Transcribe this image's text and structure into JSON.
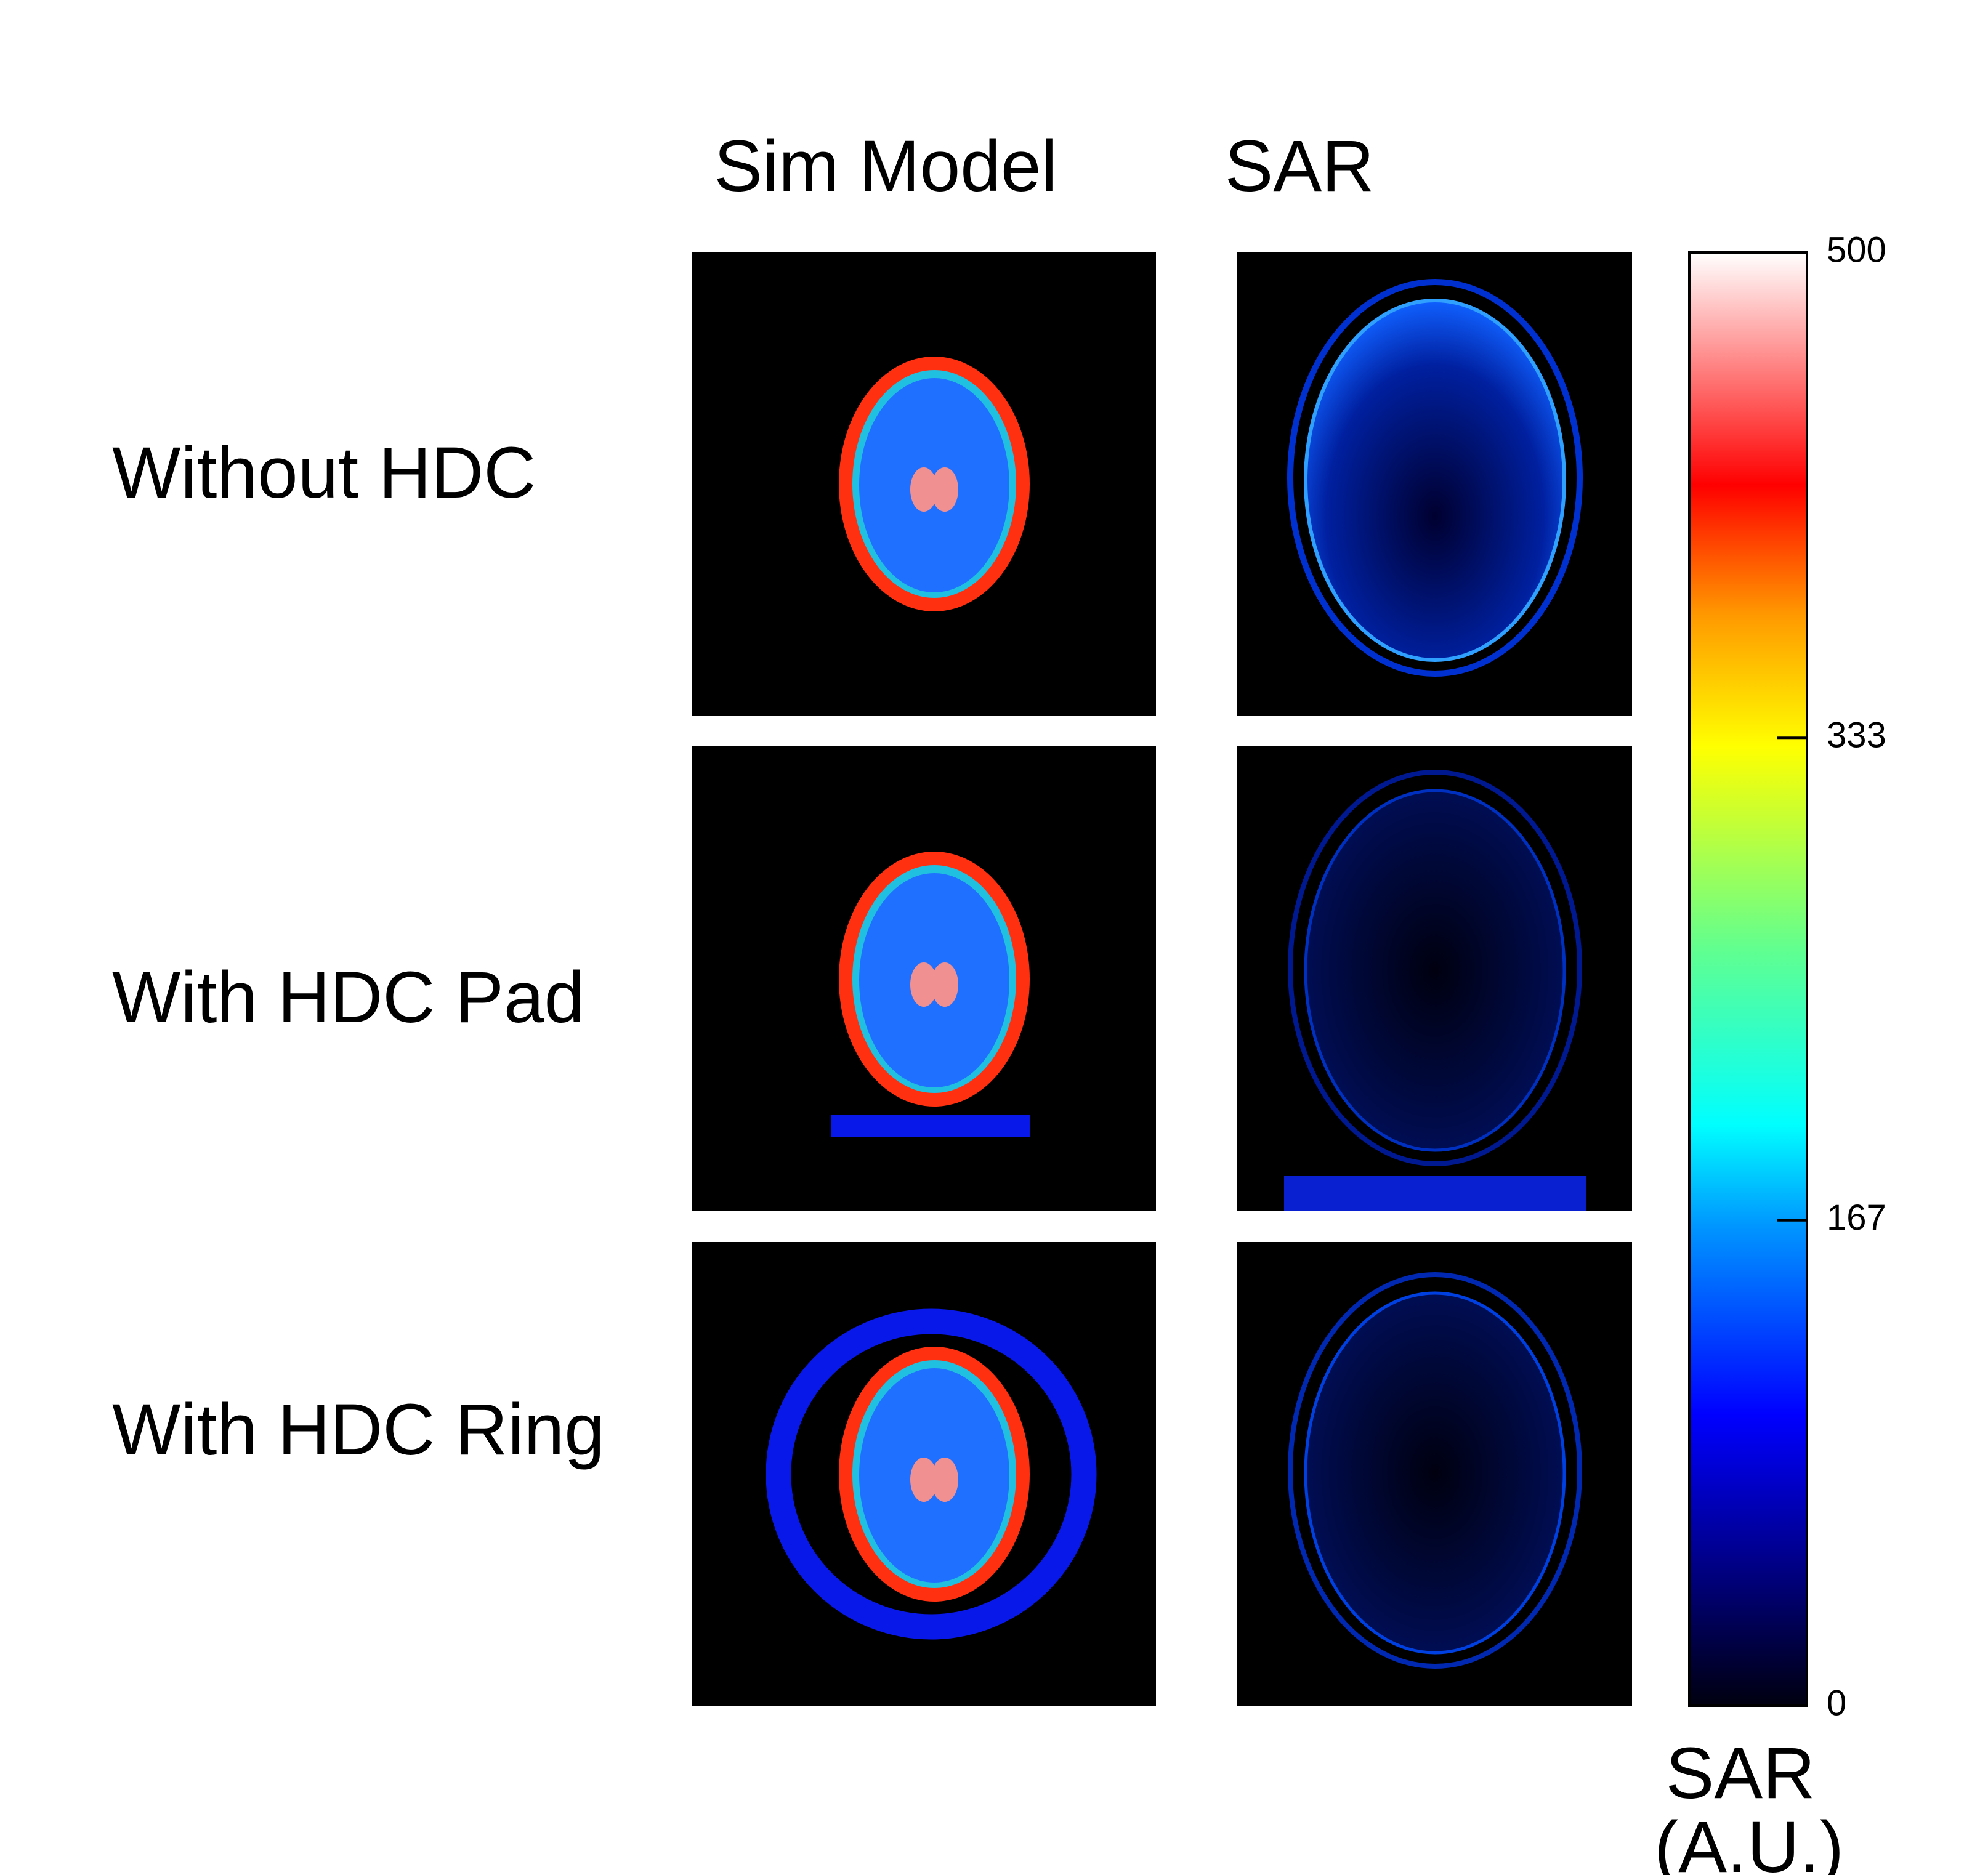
{
  "header": {
    "columns": [
      "Sim Model",
      "SAR"
    ]
  },
  "rows": [
    "Without HDC",
    "With HDC Pad",
    "With HDC Ring"
  ],
  "colorbar": {
    "lim": [
      0,
      500
    ],
    "ticks": [
      0,
      167,
      333,
      500
    ],
    "label": [
      "SAR",
      "(A.U.)"
    ]
  }
}
